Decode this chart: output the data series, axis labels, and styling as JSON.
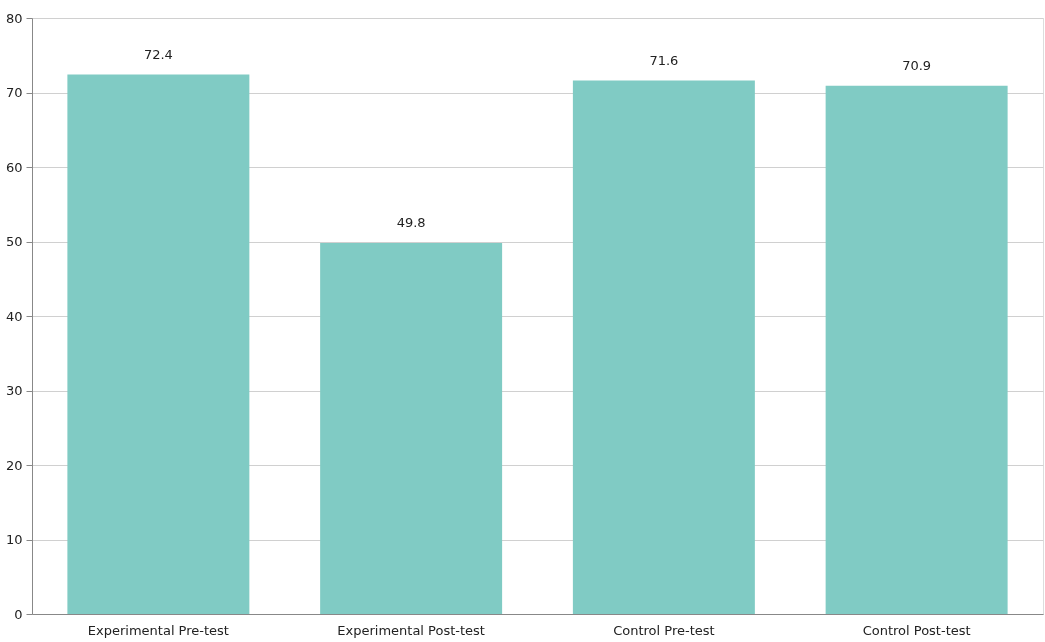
{
  "chart_data": {
    "type": "bar",
    "categories": [
      "Experimental Pre-test",
      "Experimental Post-test",
      "Control Pre-test",
      "Control Post-test"
    ],
    "values": [
      72.4,
      49.8,
      71.6,
      70.9
    ],
    "color": "#80cbc4",
    "ylim": [
      0,
      80
    ],
    "yticks": [
      0,
      10,
      20,
      30,
      40,
      50,
      60,
      70,
      80
    ],
    "grid": "y",
    "data_labels": true
  }
}
